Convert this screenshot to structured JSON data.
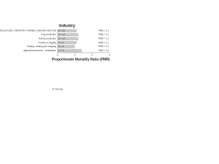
{
  "chart_data": {
    "type": "bar",
    "orientation": "horizontal",
    "title": "Industry",
    "x_label": "Proportionate Mortality Ratio (PMR)",
    "categories": [
      "AGRICULTURE, FORESTRY, FISHING, HUNTING SECTOR",
      "Hog production",
      "Animal production",
      "Forestry & logging",
      "Fishing, Hunting and Trapping",
      "Agricultural services - Horticulture"
    ],
    "series": [
      {
        "name": "Non-sig",
        "color": "#c8c8c8",
        "values": [
          1.1,
          1.2,
          1.2,
          1.1,
          1.0,
          1.4
        ],
        "value_labels": [
          "PMR = 1.1",
          "PMR = 1.2",
          "PMR = 1.2",
          "PMR = 1.1",
          "PMR = 1.0",
          "PMR = 1.4"
        ],
        "n_labels": [
          "N = 31",
          "N = 12",
          "N = 14",
          "N = 6",
          "N = 5",
          "N = 3"
        ]
      }
    ],
    "xlim": [
      0,
      3
    ],
    "xticks": [
      0,
      1,
      2,
      3
    ]
  }
}
